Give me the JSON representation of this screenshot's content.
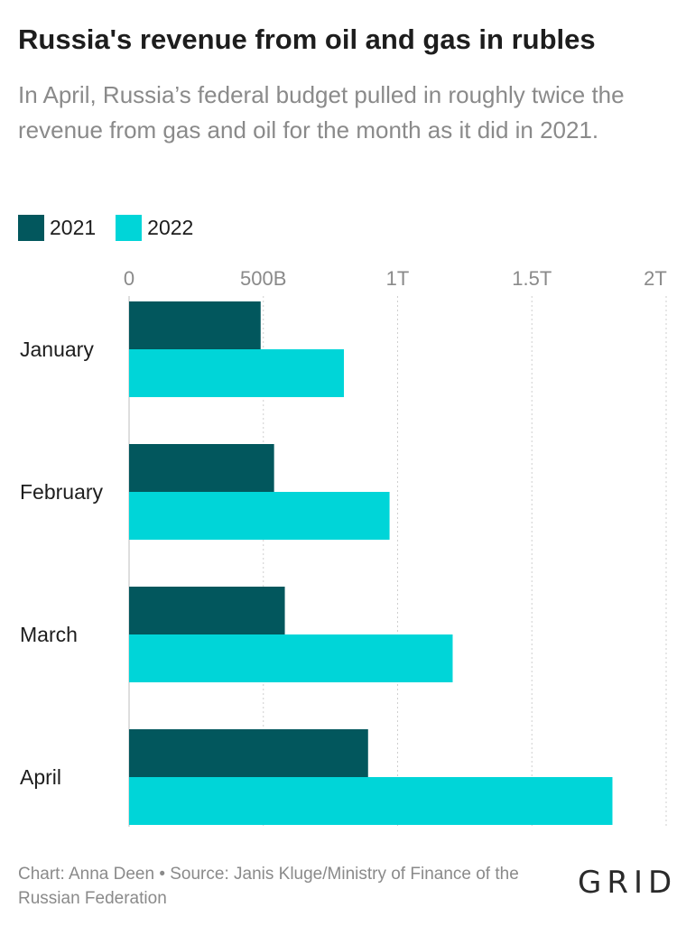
{
  "title": "Russia's revenue from oil and gas in rubles",
  "subtitle": "In April, Russia’s federal budget pulled in roughly twice the revenue from gas and oil for the month as it did in 2021.",
  "footer": "Chart: Anna Deen • Source: Janis Kluge/Ministry of Finance of the Russian Federation",
  "logo_text": "GRID",
  "colors": {
    "series_2021": "#02575d",
    "series_2022": "#00d5d8",
    "grid": "#cfcfcf",
    "tick_text": "#8a8a8a",
    "category_text": "#1d1d1d"
  },
  "chart_data": {
    "type": "bar",
    "orientation": "horizontal",
    "categories": [
      "January",
      "February",
      "March",
      "April"
    ],
    "series": [
      {
        "name": "2021",
        "values": [
          490,
          540,
          580,
          890
        ]
      },
      {
        "name": "2022",
        "values": [
          800,
          970,
          1205,
          1800
        ]
      }
    ],
    "unit": "billion rubles",
    "xlim": [
      0,
      2000
    ],
    "x_ticks": [
      0,
      500,
      1000,
      1500,
      2000
    ],
    "x_tick_labels": [
      "0",
      "500B",
      "1T",
      "1.5T",
      "2T"
    ],
    "xlabel": "",
    "ylabel": "",
    "grid": "vertical dotted",
    "legend_position": "top-left"
  }
}
